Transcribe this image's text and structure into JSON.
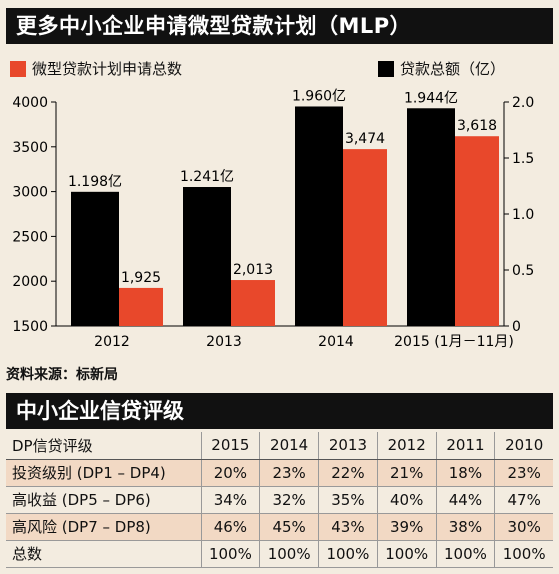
{
  "header": {
    "title": "更多中小企业申请微型贷款计划（MLP）"
  },
  "legend": {
    "left_label": "微型贷款计划申请总数",
    "right_label": "贷款总额（亿）"
  },
  "colors": {
    "count_series": "#e8482b",
    "amount_series": "#000000"
  },
  "chart_data": {
    "type": "bar",
    "categories": [
      "2012",
      "2013",
      "2014",
      "2015 (1月－11月)"
    ],
    "series": [
      {
        "name": "贷款总额（亿）",
        "axis": "right",
        "values": [
          1.198,
          1.241,
          1.96,
          1.944
        ],
        "labels": [
          "1.198亿",
          "1.241亿",
          "1.960亿",
          "1.944亿"
        ]
      },
      {
        "name": "微型贷款计划申请总数",
        "axis": "left",
        "values": [
          1925,
          2013,
          3474,
          3618
        ],
        "labels": [
          "1,925",
          "2,013",
          "3,474",
          "3,618"
        ]
      }
    ],
    "y_left": {
      "min": 1500,
      "max": 4000,
      "ticks": [
        "1500",
        "2000",
        "2500",
        "3000",
        "3500",
        "4000"
      ]
    },
    "y_right": {
      "min": 0,
      "max": 2.0,
      "ticks": [
        "0",
        "0.5",
        "1.0",
        "1.5",
        "2.0"
      ]
    },
    "grid": false,
    "legend_position": "top"
  },
  "source": "资料来源：标新局",
  "ratings": {
    "section_title": "中小企业信贷评级",
    "header": [
      "DP信贷评级",
      "2015",
      "2014",
      "2013",
      "2012",
      "2011",
      "2010"
    ],
    "rows": [
      [
        "投资级别 (DP1 – DP4)",
        "20%",
        "23%",
        "22%",
        "21%",
        "18%",
        "23%"
      ],
      [
        "高收益 (DP5 – DP6)",
        "34%",
        "32%",
        "35%",
        "40%",
        "44%",
        "47%"
      ],
      [
        "高风险 (DP7 – DP8)",
        "46%",
        "45%",
        "43%",
        "39%",
        "38%",
        "30%"
      ],
      [
        "总数",
        "100%",
        "100%",
        "100%",
        "100%",
        "100%",
        "100%"
      ]
    ]
  }
}
